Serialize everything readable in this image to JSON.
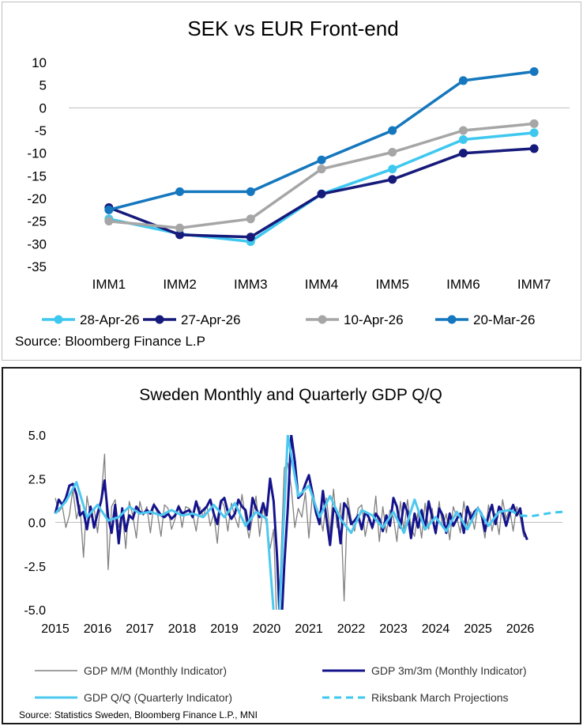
{
  "chart_data": [
    {
      "type": "line",
      "title": "SEK vs EUR Front-end",
      "categories": [
        "IMM1",
        "IMM2",
        "IMM3",
        "IMM4",
        "IMM5",
        "IMM6",
        "IMM7"
      ],
      "ylim": [
        -35,
        10
      ],
      "yticks": [
        "10",
        "5",
        "0",
        "-5",
        "-10",
        "-15",
        "-20",
        "-25",
        "-30",
        "-35"
      ],
      "grid": false,
      "legend_position": "bottom",
      "series": [
        {
          "name": "28-Apr-26",
          "color": "#3ec8ef",
          "values": [
            -24.5,
            -27.8,
            -29.5,
            -19.0,
            -13.5,
            -7.0,
            -5.5
          ]
        },
        {
          "name": "27-Apr-26",
          "color": "#161a7a",
          "values": [
            -22.0,
            -28.0,
            -28.5,
            -19.0,
            -15.8,
            -10.0,
            -9.0
          ]
        },
        {
          "name": "10-Apr-26",
          "color": "#a6a6a6",
          "values": [
            -25.0,
            -26.5,
            -24.5,
            -13.5,
            -9.8,
            -5.0,
            -3.5
          ]
        },
        {
          "name": "20-Mar-26",
          "color": "#1577bd",
          "values": [
            -22.5,
            -18.5,
            -18.5,
            -11.5,
            -5.0,
            6.0,
            8.0
          ]
        }
      ],
      "source": "Source: Bloomberg Finance L.P"
    },
    {
      "type": "line",
      "title": "Sweden Monthly and Quarterly GDP Q/Q",
      "xlim": [
        2015.0,
        2027.0
      ],
      "xticks": [
        "2015",
        "2016",
        "2017",
        "2018",
        "2019",
        "2020",
        "2021",
        "2022",
        "2023",
        "2024",
        "2025",
        "2026"
      ],
      "ylim": [
        -5.0,
        5.0
      ],
      "yticks": [
        "5.0",
        "2.5",
        "0.0",
        "-2.5",
        "-5.0"
      ],
      "grid": false,
      "legend_position": "bottom",
      "series": [
        {
          "name": "GDP M/M (Monthly Indicator)",
          "color": "#808080",
          "style": "solid-thin",
          "x": [
            2015.0,
            2015.083,
            2015.167,
            2015.25,
            2015.333,
            2015.417,
            2015.5,
            2015.583,
            2015.667,
            2015.75,
            2015.833,
            2015.917,
            2016.0,
            2016.083,
            2016.167,
            2016.25,
            2016.333,
            2016.417,
            2016.5,
            2016.583,
            2016.667,
            2016.75,
            2016.833,
            2016.917,
            2017.0,
            2017.083,
            2017.167,
            2017.25,
            2017.333,
            2017.417,
            2017.5,
            2017.583,
            2017.667,
            2017.75,
            2017.833,
            2017.917,
            2018.0,
            2018.083,
            2018.167,
            2018.25,
            2018.333,
            2018.417,
            2018.5,
            2018.583,
            2018.667,
            2018.75,
            2018.833,
            2018.917,
            2019.0,
            2019.083,
            2019.167,
            2019.25,
            2019.333,
            2019.417,
            2019.5,
            2019.583,
            2019.667,
            2019.75,
            2019.833,
            2019.917,
            2020.0,
            2020.083,
            2020.167,
            2020.25,
            2020.333,
            2020.417,
            2020.5,
            2020.583,
            2020.667,
            2020.75,
            2020.833,
            2020.917,
            2021.0,
            2021.083,
            2021.167,
            2021.25,
            2021.333,
            2021.417,
            2021.5,
            2021.583,
            2021.667,
            2021.75,
            2021.833,
            2021.917,
            2022.0,
            2022.083,
            2022.167,
            2022.25,
            2022.333,
            2022.417,
            2022.5,
            2022.583,
            2022.667,
            2022.75,
            2022.833,
            2022.917,
            2023.0,
            2023.083,
            2023.167,
            2023.25,
            2023.333,
            2023.417,
            2023.5,
            2023.583,
            2023.667,
            2023.75,
            2023.833,
            2023.917,
            2024.0,
            2024.083,
            2024.167,
            2024.25,
            2024.333,
            2024.417,
            2024.5,
            2024.583,
            2024.667,
            2024.75,
            2024.833,
            2024.917,
            2025.0,
            2025.083,
            2025.167,
            2025.25,
            2025.333,
            2025.417,
            2025.5,
            2025.583,
            2025.667,
            2025.75,
            2025.833,
            2025.917,
            2026.0,
            2026.083,
            2026.167
          ],
          "values": [
            1.4,
            0.6,
            0.9,
            -0.3,
            0.4,
            1.9,
            0.2,
            1.0,
            -2.0,
            1.5,
            0.3,
            0.8,
            -0.6,
            1.3,
            3.9,
            -2.7,
            0.9,
            1.3,
            -0.3,
            0.6,
            -1.5,
            1.2,
            0.4,
            -0.9,
            1.2,
            0.4,
            0.9,
            -0.6,
            1.1,
            0.5,
            -0.8,
            1.0,
            0.8,
            -0.4,
            0.2,
            1.0,
            -0.3,
            0.9,
            0.8,
            0.5,
            -0.5,
            0.9,
            0.3,
            1.0,
            -0.2,
            0.5,
            -1.2,
            1.3,
            0.9,
            -0.5,
            1.1,
            0.3,
            -0.3,
            1.6,
            0.2,
            -0.9,
            0.3,
            1.5,
            -0.8,
            0.9,
            -0.2,
            -1.5,
            -0.4,
            -6.5,
            -2.5,
            3.1,
            3.4,
            2.0,
            -0.3,
            0.8,
            0.3,
            1.7,
            -0.9,
            1.6,
            0.4,
            0.6,
            -0.5,
            1.4,
            -0.6,
            1.9,
            -0.3,
            1.1,
            -4.5,
            1.4,
            0.2,
            -0.5,
            0.8,
            1.0,
            -0.8,
            0.3,
            -0.4,
            1.5,
            -1.1,
            0.9,
            -0.6,
            0.7,
            0.3,
            -1.1,
            1.2,
            -0.5,
            1.3,
            -0.3,
            -0.8,
            0.6,
            -0.9,
            1.1,
            -0.4,
            0.8,
            -0.7,
            1.2,
            -0.3,
            0.5,
            -1.0,
            0.9,
            0.3,
            -0.6,
            1.2,
            -0.2,
            0.6,
            -0.4,
            0.9,
            0.3,
            -0.9,
            1.0,
            -0.5,
            0.5,
            -0.7,
            1.3,
            0.2,
            0.8,
            -0.5,
            0.9,
            0.3,
            -0.8,
            -0.9
          ]
        },
        {
          "name": "GDP 3m/3m (Monthly Indicator)",
          "color": "#14138c",
          "style": "solid-thick",
          "x": [
            2015.0,
            2015.083,
            2015.167,
            2015.25,
            2015.333,
            2015.417,
            2015.5,
            2015.583,
            2015.667,
            2015.75,
            2015.833,
            2015.917,
            2016.0,
            2016.083,
            2016.167,
            2016.25,
            2016.333,
            2016.417,
            2016.5,
            2016.583,
            2016.667,
            2016.75,
            2016.833,
            2016.917,
            2017.0,
            2017.083,
            2017.167,
            2017.25,
            2017.333,
            2017.417,
            2017.5,
            2017.583,
            2017.667,
            2017.75,
            2017.833,
            2017.917,
            2018.0,
            2018.083,
            2018.167,
            2018.25,
            2018.333,
            2018.417,
            2018.5,
            2018.583,
            2018.667,
            2018.75,
            2018.833,
            2018.917,
            2019.0,
            2019.083,
            2019.167,
            2019.25,
            2019.333,
            2019.417,
            2019.5,
            2019.583,
            2019.667,
            2019.75,
            2019.833,
            2019.917,
            2020.0,
            2020.083,
            2020.167,
            2020.25,
            2020.333,
            2020.417,
            2020.5,
            2020.583,
            2020.667,
            2020.75,
            2020.833,
            2020.917,
            2021.0,
            2021.083,
            2021.167,
            2021.25,
            2021.333,
            2021.417,
            2021.5,
            2021.583,
            2021.667,
            2021.75,
            2021.833,
            2021.917,
            2022.0,
            2022.083,
            2022.167,
            2022.25,
            2022.333,
            2022.417,
            2022.5,
            2022.583,
            2022.667,
            2022.75,
            2022.833,
            2022.917,
            2023.0,
            2023.083,
            2023.167,
            2023.25,
            2023.333,
            2023.417,
            2023.5,
            2023.583,
            2023.667,
            2023.75,
            2023.833,
            2023.917,
            2024.0,
            2024.083,
            2024.167,
            2024.25,
            2024.333,
            2024.417,
            2024.5,
            2024.583,
            2024.667,
            2024.75,
            2024.833,
            2024.917,
            2025.0,
            2025.083,
            2025.167,
            2025.25,
            2025.333,
            2025.417,
            2025.5,
            2025.583,
            2025.667,
            2025.75,
            2025.833,
            2025.917,
            2026.0,
            2026.083,
            2026.167
          ],
          "values": [
            0.5,
            1.3,
            1.0,
            1.4,
            2.1,
            2.2,
            1.6,
            0.4,
            0.6,
            -0.4,
            0.9,
            -0.3,
            0.5,
            1.2,
            2.4,
            0.3,
            -0.6,
            1.0,
            -1.2,
            0.8,
            -0.5,
            0.4,
            0.2,
            0.9,
            0.6,
            0.5,
            0.7,
            0.5,
            1.0,
            0.7,
            0.4,
            0.3,
            0.5,
            0.2,
            0.4,
            0.9,
            0.5,
            0.6,
            0.7,
            0.3,
            1.2,
            0.5,
            0.7,
            0.9,
            1.3,
            0.5,
            -0.1,
            1.2,
            1.4,
            0.6,
            0.2,
            0.5,
            1.3,
            0.9,
            0.7,
            -0.4,
            1.4,
            0.8,
            0.3,
            1.1,
            0.4,
            2.5,
            1.2,
            -2.1,
            -6.8,
            -2.5,
            0.8,
            5.0,
            3.5,
            1.4,
            1.6,
            2.2,
            2.7,
            1.7,
            0.6,
            -0.1,
            1.8,
            0.2,
            -1.3,
            0.8,
            0.5,
            -1.2,
            1.1,
            0.8,
            -0.1,
            0.1,
            0.4,
            -0.4,
            0.6,
            0.3,
            -0.3,
            0.5,
            0.2,
            -0.5,
            0.4,
            -0.2,
            1.4,
            0.9,
            -0.3,
            1.1,
            0.6,
            -0.9,
            0.5,
            -0.3,
            0.7,
            -0.4,
            1.2,
            0.3,
            -0.6,
            0.8,
            0.4,
            -0.6,
            0.5,
            -0.2,
            0.2,
            0.5,
            -0.6,
            0.9,
            0.2,
            0.6,
            0.8,
            0.5,
            -0.5,
            0.4,
            1.0,
            -0.1,
            0.9,
            0.6,
            -0.2,
            0.5,
            1.0,
            0.4,
            0.8,
            -0.5,
            -1.0
          ]
        },
        {
          "name": "GDP Q/Q (Quarterly Indicator)",
          "color": "#4dc8ef",
          "style": "solid-thick",
          "x": [
            2015.0,
            2015.25,
            2015.5,
            2015.75,
            2016.0,
            2016.25,
            2016.5,
            2016.75,
            2017.0,
            2017.25,
            2017.5,
            2017.75,
            2018.0,
            2018.25,
            2018.5,
            2018.75,
            2019.0,
            2019.25,
            2019.5,
            2019.75,
            2020.0,
            2020.25,
            2020.5,
            2020.75,
            2021.0,
            2021.25,
            2021.5,
            2021.75,
            2022.0,
            2022.25,
            2022.5,
            2022.75,
            2023.0,
            2023.25,
            2023.5,
            2023.75,
            2024.0,
            2024.25,
            2024.5,
            2024.75,
            2025.0,
            2025.25,
            2025.5,
            2025.75
          ],
          "values": [
            0.5,
            1.2,
            2.3,
            0.3,
            1.0,
            0.1,
            0.3,
            0.9,
            0.5,
            0.6,
            0.4,
            0.7,
            0.4,
            0.5,
            0.3,
            1.0,
            0.3,
            1.1,
            -0.2,
            0.6,
            0.2,
            -7.8,
            5.0,
            1.5,
            2.1,
            0.3,
            1.5,
            0.2,
            -0.6,
            0.7,
            0.4,
            -0.3,
            0.6,
            -0.6,
            1.3,
            -0.4,
            0.3,
            -0.5,
            0.6,
            -0.4,
            0.8,
            -0.2,
            0.6,
            0.7
          ]
        },
        {
          "name": "Riksbank March Projections",
          "color": "#3ec8ef",
          "style": "dashed",
          "x": [
            2025.75,
            2026.0,
            2026.25,
            2026.5,
            2026.75,
            2027.0
          ],
          "values": [
            0.7,
            0.4,
            0.35,
            0.45,
            0.55,
            0.6
          ]
        }
      ],
      "source": "Source: Statistics Sweden, Bloomberg Finance L.P., MNI"
    }
  ]
}
